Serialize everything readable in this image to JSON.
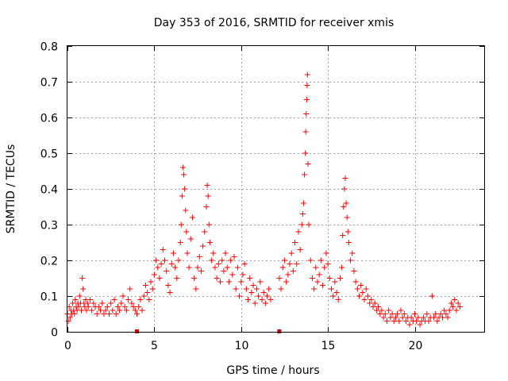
{
  "chart_data": {
    "type": "scatter",
    "title": "Day 353 of 2016, SRMTID for receiver xmis",
    "xlabel": "GPS time / hours",
    "ylabel": "SRMTID / TECUs",
    "xlim": [
      0,
      24
    ],
    "ylim": [
      0,
      0.8
    ],
    "x_ticks": [
      0,
      5,
      10,
      15,
      20
    ],
    "x_tick_labels": [
      "0",
      "5",
      "10",
      "15",
      "20"
    ],
    "y_ticks": [
      0,
      0.1,
      0.2,
      0.3,
      0.4,
      0.5,
      0.6,
      0.7,
      0.8
    ],
    "y_tick_labels": [
      "0",
      "0.1",
      "0.2",
      "0.3",
      "0.4",
      "0.5",
      "0.6",
      "0.7",
      "0.8"
    ],
    "grid": true,
    "marker": "+",
    "color": "#ff0000",
    "axis_markers": [
      {
        "x": 4.0,
        "y": 0
      },
      {
        "x": 12.2,
        "y": 0
      }
    ],
    "series": [
      {
        "name": "SRMTID",
        "points": [
          [
            0.0,
            0.05
          ],
          [
            0.05,
            0.03
          ],
          [
            0.1,
            0.07
          ],
          [
            0.15,
            0.04
          ],
          [
            0.2,
            0.06
          ],
          [
            0.25,
            0.05
          ],
          [
            0.3,
            0.08
          ],
          [
            0.35,
            0.06
          ],
          [
            0.4,
            0.05
          ],
          [
            0.45,
            0.09
          ],
          [
            0.5,
            0.07
          ],
          [
            0.55,
            0.06
          ],
          [
            0.6,
            0.08
          ],
          [
            0.65,
            0.07
          ],
          [
            0.7,
            0.1
          ],
          [
            0.75,
            0.08
          ],
          [
            0.8,
            0.06
          ],
          [
            0.85,
            0.15
          ],
          [
            0.9,
            0.12
          ],
          [
            0.95,
            0.08
          ],
          [
            1.0,
            0.07
          ],
          [
            1.05,
            0.09
          ],
          [
            1.1,
            0.06
          ],
          [
            1.15,
            0.08
          ],
          [
            1.2,
            0.07
          ],
          [
            1.3,
            0.09
          ],
          [
            1.4,
            0.06
          ],
          [
            1.5,
            0.08
          ],
          [
            1.6,
            0.07
          ],
          [
            1.7,
            0.05
          ],
          [
            1.8,
            0.07
          ],
          [
            1.9,
            0.06
          ],
          [
            2.0,
            0.08
          ],
          [
            2.1,
            0.05
          ],
          [
            2.2,
            0.06
          ],
          [
            2.3,
            0.07
          ],
          [
            2.4,
            0.05
          ],
          [
            2.5,
            0.08
          ],
          [
            2.6,
            0.06
          ],
          [
            2.7,
            0.09
          ],
          [
            2.8,
            0.05
          ],
          [
            2.9,
            0.07
          ],
          [
            3.0,
            0.06
          ],
          [
            3.1,
            0.08
          ],
          [
            3.2,
            0.1
          ],
          [
            3.3,
            0.07
          ],
          [
            3.4,
            0.06
          ],
          [
            3.5,
            0.09
          ],
          [
            3.6,
            0.12
          ],
          [
            3.7,
            0.08
          ],
          [
            3.8,
            0.07
          ],
          [
            3.9,
            0.06
          ],
          [
            4.0,
            0.05
          ],
          [
            4.1,
            0.07
          ],
          [
            4.2,
            0.09
          ],
          [
            4.3,
            0.06
          ],
          [
            4.4,
            0.1
          ],
          [
            4.5,
            0.13
          ],
          [
            4.6,
            0.11
          ],
          [
            4.7,
            0.09
          ],
          [
            4.8,
            0.14
          ],
          [
            4.9,
            0.12
          ],
          [
            5.0,
            0.16
          ],
          [
            5.1,
            0.2
          ],
          [
            5.2,
            0.18
          ],
          [
            5.3,
            0.15
          ],
          [
            5.4,
            0.19
          ],
          [
            5.5,
            0.23
          ],
          [
            5.6,
            0.2
          ],
          [
            5.7,
            0.17
          ],
          [
            5.8,
            0.13
          ],
          [
            5.9,
            0.11
          ],
          [
            6.0,
            0.19
          ],
          [
            6.1,
            0.22
          ],
          [
            6.2,
            0.18
          ],
          [
            6.3,
            0.15
          ],
          [
            6.4,
            0.2
          ],
          [
            6.5,
            0.25
          ],
          [
            6.55,
            0.3
          ],
          [
            6.6,
            0.38
          ],
          [
            6.65,
            0.46
          ],
          [
            6.7,
            0.44
          ],
          [
            6.75,
            0.4
          ],
          [
            6.8,
            0.34
          ],
          [
            6.85,
            0.28
          ],
          [
            6.9,
            0.22
          ],
          [
            7.0,
            0.18
          ],
          [
            7.1,
            0.26
          ],
          [
            7.2,
            0.32
          ],
          [
            7.3,
            0.15
          ],
          [
            7.4,
            0.12
          ],
          [
            7.5,
            0.18
          ],
          [
            7.6,
            0.21
          ],
          [
            7.7,
            0.17
          ],
          [
            7.8,
            0.24
          ],
          [
            7.9,
            0.28
          ],
          [
            8.0,
            0.35
          ],
          [
            8.05,
            0.41
          ],
          [
            8.1,
            0.38
          ],
          [
            8.15,
            0.3
          ],
          [
            8.2,
            0.25
          ],
          [
            8.3,
            0.2
          ],
          [
            8.4,
            0.22
          ],
          [
            8.5,
            0.18
          ],
          [
            8.6,
            0.15
          ],
          [
            8.7,
            0.19
          ],
          [
            8.8,
            0.14
          ],
          [
            8.9,
            0.2
          ],
          [
            9.0,
            0.17
          ],
          [
            9.1,
            0.22
          ],
          [
            9.2,
            0.18
          ],
          [
            9.3,
            0.14
          ],
          [
            9.4,
            0.2
          ],
          [
            9.5,
            0.16
          ],
          [
            9.6,
            0.21
          ],
          [
            9.7,
            0.12
          ],
          [
            9.8,
            0.18
          ],
          [
            9.9,
            0.1
          ],
          [
            10.0,
            0.14
          ],
          [
            10.1,
            0.16
          ],
          [
            10.2,
            0.19
          ],
          [
            10.3,
            0.12
          ],
          [
            10.4,
            0.09
          ],
          [
            10.5,
            0.15
          ],
          [
            10.6,
            0.11
          ],
          [
            10.7,
            0.13
          ],
          [
            10.8,
            0.08
          ],
          [
            10.9,
            0.12
          ],
          [
            11.0,
            0.1
          ],
          [
            11.1,
            0.14
          ],
          [
            11.2,
            0.09
          ],
          [
            11.3,
            0.11
          ],
          [
            11.4,
            0.08
          ],
          [
            11.5,
            0.1
          ],
          [
            11.6,
            0.12
          ],
          [
            11.7,
            0.09
          ],
          [
            12.2,
            0.15
          ],
          [
            12.3,
            0.12
          ],
          [
            12.4,
            0.18
          ],
          [
            12.5,
            0.2
          ],
          [
            12.6,
            0.14
          ],
          [
            12.7,
            0.16
          ],
          [
            12.8,
            0.19
          ],
          [
            12.9,
            0.22
          ],
          [
            13.0,
            0.17
          ],
          [
            13.1,
            0.25
          ],
          [
            13.2,
            0.19
          ],
          [
            13.3,
            0.28
          ],
          [
            13.4,
            0.23
          ],
          [
            13.5,
            0.3
          ],
          [
            13.55,
            0.33
          ],
          [
            13.6,
            0.36
          ],
          [
            13.65,
            0.44
          ],
          [
            13.7,
            0.5
          ],
          [
            13.72,
            0.56
          ],
          [
            13.75,
            0.61
          ],
          [
            13.78,
            0.65
          ],
          [
            13.8,
            0.69
          ],
          [
            13.82,
            0.72
          ],
          [
            13.85,
            0.47
          ],
          [
            13.9,
            0.3
          ],
          [
            14.0,
            0.2
          ],
          [
            14.1,
            0.15
          ],
          [
            14.2,
            0.12
          ],
          [
            14.3,
            0.18
          ],
          [
            14.4,
            0.14
          ],
          [
            14.5,
            0.16
          ],
          [
            14.6,
            0.2
          ],
          [
            14.7,
            0.13
          ],
          [
            14.8,
            0.18
          ],
          [
            14.9,
            0.22
          ],
          [
            15.0,
            0.19
          ],
          [
            15.1,
            0.15
          ],
          [
            15.2,
            0.12
          ],
          [
            15.3,
            0.1
          ],
          [
            15.4,
            0.14
          ],
          [
            15.5,
            0.11
          ],
          [
            15.6,
            0.09
          ],
          [
            15.7,
            0.15
          ],
          [
            15.8,
            0.18
          ],
          [
            15.85,
            0.27
          ],
          [
            15.9,
            0.35
          ],
          [
            15.95,
            0.4
          ],
          [
            16.0,
            0.43
          ],
          [
            16.05,
            0.36
          ],
          [
            16.1,
            0.32
          ],
          [
            16.15,
            0.28
          ],
          [
            16.2,
            0.25
          ],
          [
            16.3,
            0.2
          ],
          [
            16.4,
            0.22
          ],
          [
            16.5,
            0.17
          ],
          [
            16.6,
            0.14
          ],
          [
            16.7,
            0.12
          ],
          [
            16.8,
            0.1
          ],
          [
            16.9,
            0.13
          ],
          [
            17.0,
            0.11
          ],
          [
            17.1,
            0.09
          ],
          [
            17.2,
            0.12
          ],
          [
            17.3,
            0.1
          ],
          [
            17.4,
            0.08
          ],
          [
            17.5,
            0.09
          ],
          [
            17.6,
            0.07
          ],
          [
            17.7,
            0.08
          ],
          [
            17.8,
            0.06
          ],
          [
            17.9,
            0.07
          ],
          [
            18.0,
            0.05
          ],
          [
            18.1,
            0.06
          ],
          [
            18.2,
            0.04
          ],
          [
            18.3,
            0.05
          ],
          [
            18.4,
            0.03
          ],
          [
            18.5,
            0.06
          ],
          [
            18.6,
            0.04
          ],
          [
            18.7,
            0.05
          ],
          [
            18.8,
            0.03
          ],
          [
            18.9,
            0.04
          ],
          [
            19.0,
            0.05
          ],
          [
            19.1,
            0.03
          ],
          [
            19.2,
            0.06
          ],
          [
            19.3,
            0.04
          ],
          [
            19.4,
            0.05
          ],
          [
            19.5,
            0.03
          ],
          [
            19.6,
            0.04
          ],
          [
            19.7,
            0.02
          ],
          [
            19.8,
            0.04
          ],
          [
            19.9,
            0.03
          ],
          [
            20.0,
            0.05
          ],
          [
            20.1,
            0.03
          ],
          [
            20.2,
            0.04
          ],
          [
            20.3,
            0.02
          ],
          [
            20.4,
            0.03
          ],
          [
            20.5,
            0.04
          ],
          [
            20.6,
            0.03
          ],
          [
            20.7,
            0.05
          ],
          [
            20.8,
            0.03
          ],
          [
            20.9,
            0.04
          ],
          [
            21.0,
            0.1
          ],
          [
            21.1,
            0.04
          ],
          [
            21.2,
            0.05
          ],
          [
            21.3,
            0.03
          ],
          [
            21.4,
            0.04
          ],
          [
            21.5,
            0.05
          ],
          [
            21.6,
            0.04
          ],
          [
            21.7,
            0.06
          ],
          [
            21.8,
            0.05
          ],
          [
            21.9,
            0.04
          ],
          [
            22.0,
            0.06
          ],
          [
            22.1,
            0.08
          ],
          [
            22.2,
            0.07
          ],
          [
            22.3,
            0.09
          ],
          [
            22.4,
            0.06
          ],
          [
            22.5,
            0.08
          ],
          [
            22.6,
            0.07
          ]
        ]
      }
    ]
  }
}
